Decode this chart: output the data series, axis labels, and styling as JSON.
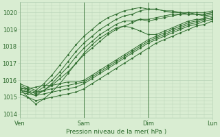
{
  "title": "Pression niveau de la mer( hPa )",
  "ylabel_ticks": [
    1014,
    1015,
    1016,
    1017,
    1018,
    1019,
    1020
  ],
  "ylim": [
    1013.8,
    1020.6
  ],
  "xlim": [
    0,
    72
  ],
  "day_ticks": [
    0,
    24,
    48,
    72
  ],
  "day_labels": [
    "Ven",
    "Sam",
    "Dim",
    "Lun"
  ],
  "bg_color": "#d9edd2",
  "grid_color": "#b8d4b8",
  "line_color": "#2d6b2d",
  "lines": [
    {
      "x": [
        0,
        3,
        6,
        9,
        12,
        15,
        18,
        21,
        24,
        27,
        30,
        33,
        36,
        39,
        42,
        45,
        48,
        51,
        54,
        57,
        60,
        63,
        66,
        69,
        72
      ],
      "y": [
        1015.5,
        1015.5,
        1015.6,
        1015.7,
        1015.7,
        1015.8,
        1015.9,
        1015.9,
        1016.0,
        1016.3,
        1016.6,
        1016.9,
        1017.2,
        1017.5,
        1017.8,
        1018.1,
        1018.4,
        1018.6,
        1018.8,
        1019.0,
        1019.2,
        1019.4,
        1019.5,
        1019.7,
        1019.8
      ]
    },
    {
      "x": [
        0,
        3,
        6,
        9,
        12,
        15,
        18,
        21,
        24,
        27,
        30,
        33,
        36,
        39,
        42,
        45,
        48,
        51,
        54,
        57,
        60,
        63,
        66,
        69,
        72
      ],
      "y": [
        1015.4,
        1015.3,
        1015.3,
        1015.4,
        1015.5,
        1015.6,
        1015.7,
        1015.8,
        1015.9,
        1016.2,
        1016.5,
        1016.8,
        1017.1,
        1017.4,
        1017.7,
        1018.0,
        1018.3,
        1018.5,
        1018.7,
        1018.9,
        1019.1,
        1019.3,
        1019.4,
        1019.6,
        1019.7
      ]
    },
    {
      "x": [
        0,
        3,
        6,
        9,
        12,
        15,
        18,
        21,
        24,
        27,
        30,
        33,
        36,
        39,
        42,
        45,
        48,
        51,
        54,
        57,
        60,
        63,
        66,
        69,
        72
      ],
      "y": [
        1015.3,
        1015.2,
        1015.1,
        1015.2,
        1015.3,
        1015.4,
        1015.5,
        1015.6,
        1015.8,
        1016.1,
        1016.4,
        1016.7,
        1017.0,
        1017.3,
        1017.6,
        1017.9,
        1018.2,
        1018.4,
        1018.6,
        1018.8,
        1019.0,
        1019.2,
        1019.3,
        1019.5,
        1019.6
      ]
    },
    {
      "x": [
        0,
        3,
        6,
        9,
        12,
        15,
        18,
        21,
        24,
        27,
        30,
        33,
        36,
        39,
        42,
        45,
        48,
        51,
        54,
        57,
        60,
        63,
        66,
        69,
        72
      ],
      "y": [
        1015.2,
        1015.0,
        1014.8,
        1014.9,
        1015.0,
        1015.1,
        1015.2,
        1015.3,
        1015.5,
        1015.8,
        1016.1,
        1016.4,
        1016.7,
        1017.0,
        1017.3,
        1017.6,
        1017.9,
        1018.2,
        1018.4,
        1018.6,
        1018.8,
        1019.0,
        1019.2,
        1019.3,
        1019.5
      ]
    },
    {
      "x": [
        0,
        3,
        6,
        9,
        12,
        15,
        18,
        21,
        24,
        27,
        30,
        33,
        36,
        39,
        42,
        45,
        48,
        51,
        54,
        57,
        60,
        63,
        66,
        69,
        72
      ],
      "y": [
        1015.6,
        1015.4,
        1015.2,
        1015.4,
        1015.7,
        1016.1,
        1016.5,
        1017.0,
        1017.5,
        1017.9,
        1018.3,
        1018.7,
        1019.0,
        1019.2,
        1019.4,
        1019.6,
        1019.6,
        1019.7,
        1019.8,
        1019.9,
        1019.9,
        1020.0,
        1020.0,
        1020.0,
        1020.1
      ]
    },
    {
      "x": [
        0,
        3,
        6,
        9,
        12,
        15,
        18,
        21,
        24,
        27,
        30,
        33,
        36,
        39,
        42,
        45,
        48,
        51,
        54,
        57,
        60,
        63,
        66,
        69,
        72
      ],
      "y": [
        1015.5,
        1015.3,
        1015.1,
        1015.4,
        1015.8,
        1016.3,
        1016.8,
        1017.4,
        1017.9,
        1018.3,
        1018.7,
        1019.0,
        1019.3,
        1019.5,
        1019.5,
        1019.6,
        1019.5,
        1019.6,
        1019.7,
        1019.8,
        1019.9,
        1019.9,
        1019.9,
        1019.9,
        1020.0
      ]
    },
    {
      "x": [
        0,
        3,
        6,
        9,
        12,
        15,
        18,
        21,
        24,
        27,
        30,
        33,
        36,
        39,
        42,
        45,
        48,
        51,
        54,
        57,
        60,
        63,
        66,
        69,
        72
      ],
      "y": [
        1015.7,
        1015.5,
        1015.3,
        1015.6,
        1016.0,
        1016.5,
        1017.1,
        1017.7,
        1018.2,
        1018.6,
        1019.0,
        1019.3,
        1019.6,
        1019.8,
        1019.9,
        1020.1,
        1020.2,
        1020.2,
        1020.1,
        1020.1,
        1020.0,
        1020.0,
        1019.9,
        1019.9,
        1020.0
      ]
    },
    {
      "x": [
        0,
        3,
        6,
        9,
        12,
        15,
        18,
        21,
        24,
        27,
        30,
        33,
        36,
        39,
        42,
        45,
        48,
        51,
        54,
        57,
        60,
        63,
        66,
        69,
        72
      ],
      "y": [
        1015.8,
        1015.6,
        1015.4,
        1015.8,
        1016.3,
        1016.9,
        1017.5,
        1018.1,
        1018.6,
        1019.0,
        1019.4,
        1019.7,
        1019.9,
        1020.1,
        1020.2,
        1020.3,
        1020.2,
        1020.2,
        1020.1,
        1020.0,
        1020.0,
        1019.9,
        1019.9,
        1019.8,
        1019.9
      ]
    },
    {
      "x": [
        0,
        3,
        6,
        9,
        12,
        15,
        18,
        21,
        24,
        27,
        30,
        33,
        36,
        39,
        42,
        45,
        48,
        51,
        54,
        57,
        60,
        63,
        66,
        69,
        72
      ],
      "y": [
        1015.5,
        1015.0,
        1014.6,
        1014.9,
        1015.3,
        1015.8,
        1016.4,
        1017.0,
        1017.6,
        1018.1,
        1018.5,
        1018.8,
        1019.1,
        1019.2,
        1019.1,
        1018.9,
        1018.7,
        1018.7,
        1018.9,
        1019.1,
        1019.3,
        1019.5,
        1019.6,
        1019.6,
        1019.7
      ]
    }
  ]
}
